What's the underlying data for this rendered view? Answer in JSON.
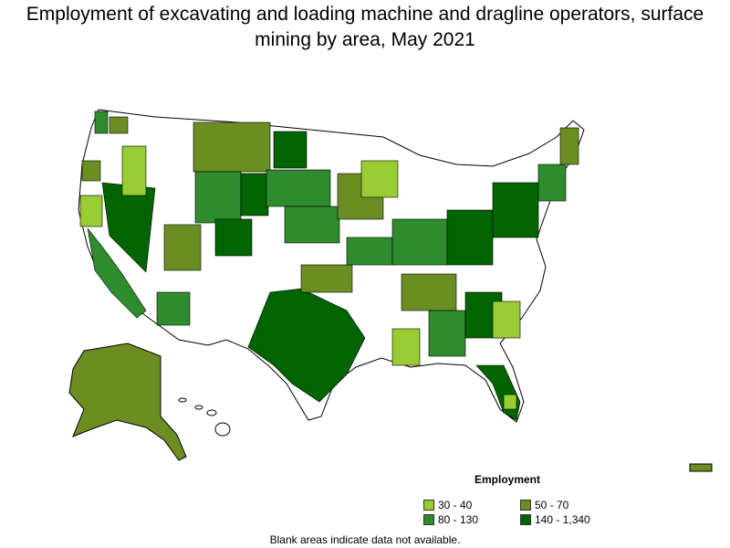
{
  "title": "Employment of excavating and loading machine and dragline operators, surface mining by area, May 2021",
  "legend": {
    "title": "Employment",
    "items": [
      {
        "label": "30 - 40",
        "color": "#99cc33"
      },
      {
        "label": "50 - 70",
        "color": "#6b8e23"
      },
      {
        "label": "80 - 130",
        "color": "#2e8b2e"
      },
      {
        "label": "140 - 1,340",
        "color": "#006400"
      }
    ]
  },
  "footnote": "Blank areas indicate data not available.",
  "colors": {
    "blank": "#ffffff",
    "border": "#000000"
  }
}
